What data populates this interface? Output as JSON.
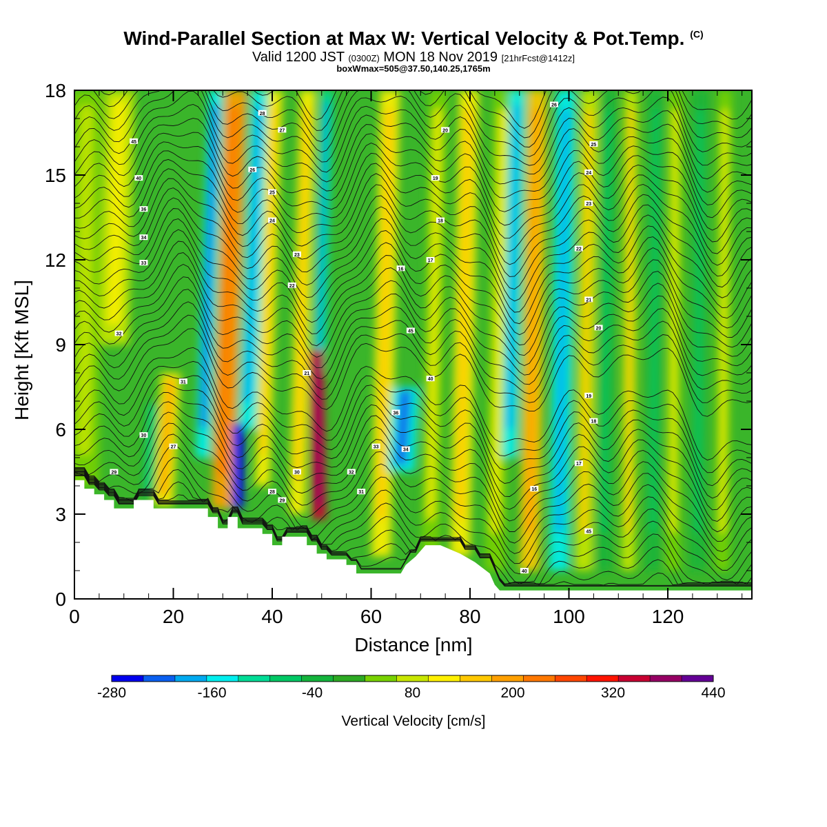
{
  "header": {
    "title": "Wind-Parallel Section at Max W: Vertical Velocity & Pot.Temp.",
    "title_tag": "(C)",
    "subtitle_pre": "Valid 1200 JST",
    "subtitle_zulu": "(0300Z)",
    "subtitle_date": "MON 18 Nov 2019",
    "subtitle_fcst": "[21hrFcst@1412z]",
    "subline": "boxWmax=505@37.50,140.25,1765m"
  },
  "chart_data": {
    "type": "heatmap",
    "title": "Wind-Parallel Section at Max W: Vertical Velocity & Pot.Temp.",
    "xlabel": "Distance [nm]",
    "ylabel": "Height [Kft MSL]",
    "xlim": [
      0,
      137
    ],
    "ylim": [
      0,
      18
    ],
    "x_ticks": [
      "0",
      "20",
      "40",
      "60",
      "80",
      "100",
      "120"
    ],
    "y_ticks": [
      "0",
      "3",
      "6",
      "9",
      "12",
      "15",
      "18"
    ],
    "grid": false,
    "colorbar": {
      "title": "Vertical Velocity [cm/s]",
      "tick_labels": [
        "-280",
        "-160",
        "-40",
        "80",
        "200",
        "320",
        "440"
      ],
      "bounds": [
        -280,
        440
      ],
      "colors": [
        "#0000ee",
        "#0a5ff0",
        "#00aaf0",
        "#00eeee",
        "#00dc96",
        "#00c864",
        "#14b43c",
        "#2daa23",
        "#78d200",
        "#c8e600",
        "#fff000",
        "#ffc800",
        "#ffa000",
        "#ff7800",
        "#ff4600",
        "#ff1400",
        "#c80032",
        "#960064",
        "#640096"
      ]
    },
    "velocity_bands": [
      {
        "x": 30,
        "w": 2.3,
        "y0": 3.2,
        "y1": 18,
        "tilt": 2.6,
        "value": 190
      },
      {
        "x": 26,
        "w": 1.5,
        "y0": 5,
        "y1": 18,
        "tilt": 2.6,
        "value": -150
      },
      {
        "x": 35,
        "w": 1.8,
        "y0": 6,
        "y1": 18,
        "tilt": 2.6,
        "value": -140
      },
      {
        "x": 38,
        "w": 1.5,
        "y0": 4,
        "y1": 18,
        "tilt": 2.6,
        "value": 100
      },
      {
        "x": 45,
        "w": 1.6,
        "y0": 3,
        "y1": 18,
        "tilt": 2.2,
        "value": 100
      },
      {
        "x": 49.5,
        "w": 1.3,
        "y0": 8,
        "y1": 18,
        "tilt": 1.6,
        "value": -110
      },
      {
        "x": 33,
        "w": 1.2,
        "y0": 3.2,
        "y1": 6.2,
        "tilt": 0.2,
        "value": -280
      },
      {
        "x": 49.5,
        "w": 1.5,
        "y0": 2.8,
        "y1": 8.8,
        "tilt": -0.6,
        "value": 330
      },
      {
        "x": 18,
        "w": 2.0,
        "y0": 3.3,
        "y1": 8,
        "tilt": 1.5,
        "value": 120
      },
      {
        "x": 15,
        "w": 1.3,
        "y0": 3.5,
        "y1": 7,
        "tilt": 1.0,
        "value": -40
      },
      {
        "x": 62,
        "w": 2.0,
        "y0": 1.5,
        "y1": 18,
        "tilt": 1.8,
        "value": 100
      },
      {
        "x": 66,
        "w": 2.8,
        "y0": 4.5,
        "y1": 7.5,
        "tilt": 1.0,
        "value": -160
      },
      {
        "x": 72,
        "w": 1.8,
        "y0": 1.5,
        "y1": 18,
        "tilt": 1.6,
        "value": 60
      },
      {
        "x": 78,
        "w": 2.0,
        "y0": 1.5,
        "y1": 18,
        "tilt": 1.8,
        "value": 110
      },
      {
        "x": 85,
        "w": 2.0,
        "y0": 1.0,
        "y1": 18,
        "tilt": 1.8,
        "value": 40
      },
      {
        "x": 88,
        "w": 1.6,
        "y0": 5,
        "y1": 18,
        "tilt": 1.6,
        "value": -130
      },
      {
        "x": 92,
        "w": 2.0,
        "y0": 1.0,
        "y1": 18,
        "tilt": 1.6,
        "value": 150
      },
      {
        "x": 98,
        "w": 2.0,
        "y0": 1.0,
        "y1": 18,
        "tilt": 1.4,
        "value": -130
      },
      {
        "x": 103,
        "w": 1.8,
        "y0": 1.0,
        "y1": 18,
        "tilt": 1.2,
        "value": 90
      },
      {
        "x": 107,
        "w": 1.5,
        "y0": 1.0,
        "y1": 18,
        "tilt": 1.0,
        "value": -20
      },
      {
        "x": 112,
        "w": 1.4,
        "y0": 1.0,
        "y1": 18,
        "tilt": 0.6,
        "value": 80
      },
      {
        "x": 117,
        "w": 1.4,
        "y0": 1.0,
        "y1": 18,
        "tilt": 0.6,
        "value": -30
      },
      {
        "x": 121,
        "w": 1.4,
        "y0": 1.0,
        "y1": 18,
        "tilt": 0.6,
        "value": 60
      },
      {
        "x": 126,
        "w": 1.4,
        "y0": 1.0,
        "y1": 18,
        "tilt": 0.6,
        "value": -20
      },
      {
        "x": 131,
        "w": 1.4,
        "y0": 1.0,
        "y1": 18,
        "tilt": 0.6,
        "value": 40
      },
      {
        "x": 8,
        "w": 3.0,
        "y0": 9,
        "y1": 18,
        "tilt": 1.2,
        "value": 70
      },
      {
        "x": 2,
        "w": 3.0,
        "y0": 4,
        "y1": 18,
        "tilt": 0.5,
        "value": 30
      }
    ],
    "terrain": [
      [
        0,
        4.2
      ],
      [
        2,
        4.2
      ],
      [
        2,
        3.9
      ],
      [
        4,
        3.9
      ],
      [
        4,
        3.7
      ],
      [
        6,
        3.7
      ],
      [
        6,
        3.5
      ],
      [
        8,
        3.5
      ],
      [
        8,
        3.2
      ],
      [
        12,
        3.2
      ],
      [
        12,
        3.5
      ],
      [
        16,
        3.5
      ],
      [
        16,
        3.2
      ],
      [
        27,
        3.2
      ],
      [
        27,
        2.9
      ],
      [
        29,
        2.9
      ],
      [
        29,
        2.5
      ],
      [
        31,
        2.5
      ],
      [
        31,
        2.9
      ],
      [
        33,
        2.9
      ],
      [
        33,
        2.5
      ],
      [
        38,
        2.5
      ],
      [
        38,
        2.3
      ],
      [
        40,
        2.3
      ],
      [
        40,
        1.9
      ],
      [
        42,
        1.9
      ],
      [
        42,
        2.2
      ],
      [
        47,
        2.2
      ],
      [
        47,
        1.9
      ],
      [
        49,
        1.9
      ],
      [
        49,
        1.6
      ],
      [
        51,
        1.6
      ],
      [
        51,
        1.4
      ],
      [
        55,
        1.4
      ],
      [
        55,
        1.2
      ],
      [
        57,
        1.2
      ],
      [
        57,
        0.9
      ],
      [
        66,
        0.9
      ],
      [
        67,
        1.2
      ],
      [
        69,
        1.5
      ],
      [
        71,
        1.9
      ],
      [
        74,
        1.9
      ],
      [
        78,
        1.6
      ],
      [
        81,
        1.3
      ],
      [
        84,
        0.9
      ],
      [
        85,
        0.5
      ],
      [
        86,
        0.3
      ],
      [
        137,
        0.3
      ]
    ],
    "isentrope_labels": [
      "45",
      "40",
      "36",
      "34",
      "33",
      "32",
      "31",
      "30",
      "29",
      "28",
      "27",
      "26",
      "25",
      "24",
      "23",
      "22",
      "21",
      "20",
      "19",
      "18",
      "17",
      "16"
    ]
  }
}
